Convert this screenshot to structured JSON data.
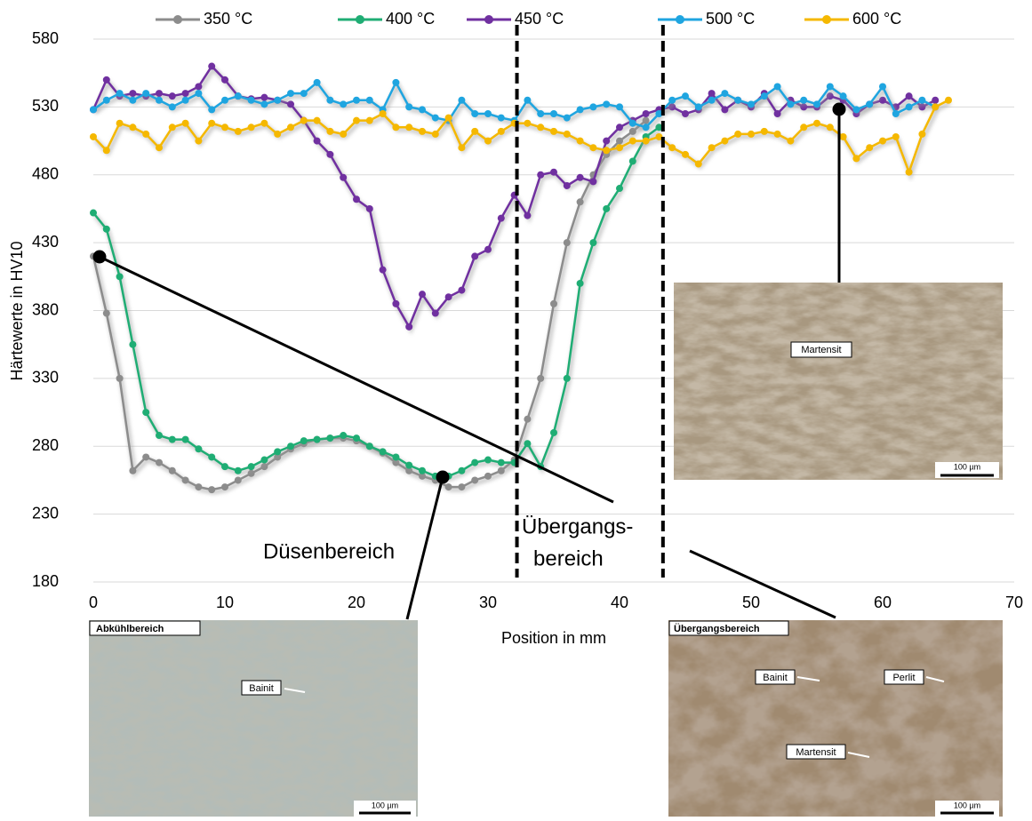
{
  "chart_data": {
    "type": "line",
    "ylabel": "Härtewerte  in HV10",
    "xlabel": "Position in mm",
    "xlim": [
      0,
      70
    ],
    "xticks": [
      0,
      10,
      20,
      30,
      40,
      50,
      60,
      70
    ],
    "ylim": [
      180,
      580
    ],
    "yticks": [
      180,
      230,
      280,
      330,
      380,
      430,
      480,
      530,
      580
    ],
    "grid": true,
    "legend": "top",
    "x": [
      0,
      1,
      2,
      3,
      4,
      5,
      6,
      7,
      8,
      9,
      10,
      11,
      12,
      13,
      14,
      15,
      16,
      17,
      18,
      19,
      20,
      21,
      22,
      23,
      24,
      25,
      26,
      27,
      28,
      29,
      30,
      31,
      32,
      33,
      34,
      35,
      36,
      37,
      38,
      39,
      40,
      41,
      42,
      43,
      44,
      45,
      46,
      47,
      48,
      49,
      50,
      51,
      52,
      53,
      54,
      55,
      56,
      57,
      58,
      59,
      60,
      61,
      62,
      63,
      64,
      65
    ],
    "series": [
      {
        "name": "350 °C",
        "color": "#8c8c8c",
        "values": [
          420,
          378,
          330,
          262,
          272,
          268,
          262,
          255,
          250,
          248,
          250,
          255,
          260,
          265,
          272,
          278,
          282,
          285,
          286,
          286,
          284,
          280,
          275,
          268,
          262,
          258,
          255,
          250,
          250,
          255,
          258,
          262,
          270,
          300,
          330,
          385,
          430,
          460,
          480,
          495,
          505,
          512,
          520,
          null,
          null,
          null,
          null,
          null,
          null,
          null,
          null,
          null,
          null,
          null,
          null,
          null,
          null,
          null,
          null,
          null,
          null,
          null,
          null,
          null,
          null,
          null
        ]
      },
      {
        "name": "400 °C",
        "color": "#1fad74",
        "values": [
          452,
          440,
          405,
          355,
          305,
          288,
          285,
          285,
          278,
          272,
          265,
          262,
          265,
          270,
          276,
          280,
          284,
          285,
          286,
          288,
          286,
          280,
          276,
          272,
          266,
          262,
          258,
          258,
          262,
          268,
          270,
          268,
          268,
          282,
          265,
          290,
          330,
          400,
          430,
          455,
          470,
          490,
          508,
          515,
          null,
          null,
          null,
          null,
          null,
          null,
          null,
          null,
          null,
          null,
          null,
          null,
          null,
          null,
          null,
          null,
          null,
          null,
          null,
          null,
          null,
          null
        ]
      },
      {
        "name": "450 °C",
        "color": "#7030a0",
        "values": [
          528,
          550,
          538,
          540,
          538,
          540,
          538,
          540,
          545,
          560,
          550,
          538,
          536,
          537,
          535,
          532,
          520,
          505,
          495,
          478,
          462,
          455,
          410,
          385,
          368,
          392,
          378,
          390,
          395,
          420,
          425,
          448,
          465,
          450,
          480,
          482,
          472,
          478,
          475,
          505,
          515,
          520,
          525,
          528,
          530,
          525,
          528,
          540,
          528,
          535,
          530,
          540,
          525,
          535,
          530,
          530,
          538,
          535,
          525,
          532,
          535,
          530,
          538,
          530,
          535,
          null
        ]
      },
      {
        "name": "500 °C",
        "color": "#1fa5e0",
        "values": [
          528,
          535,
          540,
          535,
          540,
          535,
          530,
          535,
          540,
          528,
          535,
          538,
          535,
          532,
          535,
          540,
          540,
          548,
          535,
          532,
          535,
          535,
          528,
          548,
          530,
          528,
          522,
          520,
          535,
          525,
          525,
          522,
          520,
          535,
          525,
          525,
          522,
          528,
          530,
          532,
          530,
          518,
          515,
          525,
          535,
          538,
          530,
          535,
          540,
          535,
          532,
          538,
          545,
          532,
          535,
          532,
          545,
          538,
          528,
          532,
          545,
          525,
          530,
          535,
          530,
          null
        ]
      },
      {
        "name": "600 °C",
        "color": "#f5b800",
        "values": [
          508,
          498,
          518,
          515,
          510,
          500,
          515,
          518,
          505,
          518,
          515,
          512,
          515,
          518,
          510,
          515,
          520,
          520,
          512,
          510,
          520,
          520,
          525,
          515,
          515,
          512,
          510,
          522,
          500,
          512,
          505,
          512,
          518,
          518,
          515,
          512,
          510,
          505,
          500,
          498,
          500,
          505,
          505,
          508,
          500,
          495,
          488,
          500,
          505,
          510,
          510,
          512,
          510,
          505,
          515,
          518,
          515,
          508,
          492,
          500,
          505,
          508,
          482,
          510,
          530,
          535
        ]
      }
    ],
    "vlines": [
      32.2,
      43.3
    ],
    "annotations": [
      "Düsenbereich",
      "Übergangs-",
      "bereich"
    ]
  },
  "insets": [
    {
      "labels": [
        "Martensit",
        "100 µm"
      ]
    },
    {
      "title": "Abkühlbereich",
      "labels": [
        "Bainit",
        "100 µm"
      ]
    },
    {
      "title": "Übergangsbereich",
      "labels": [
        "Bainit",
        "Perlit",
        "Martensit",
        "100 µm"
      ]
    }
  ]
}
